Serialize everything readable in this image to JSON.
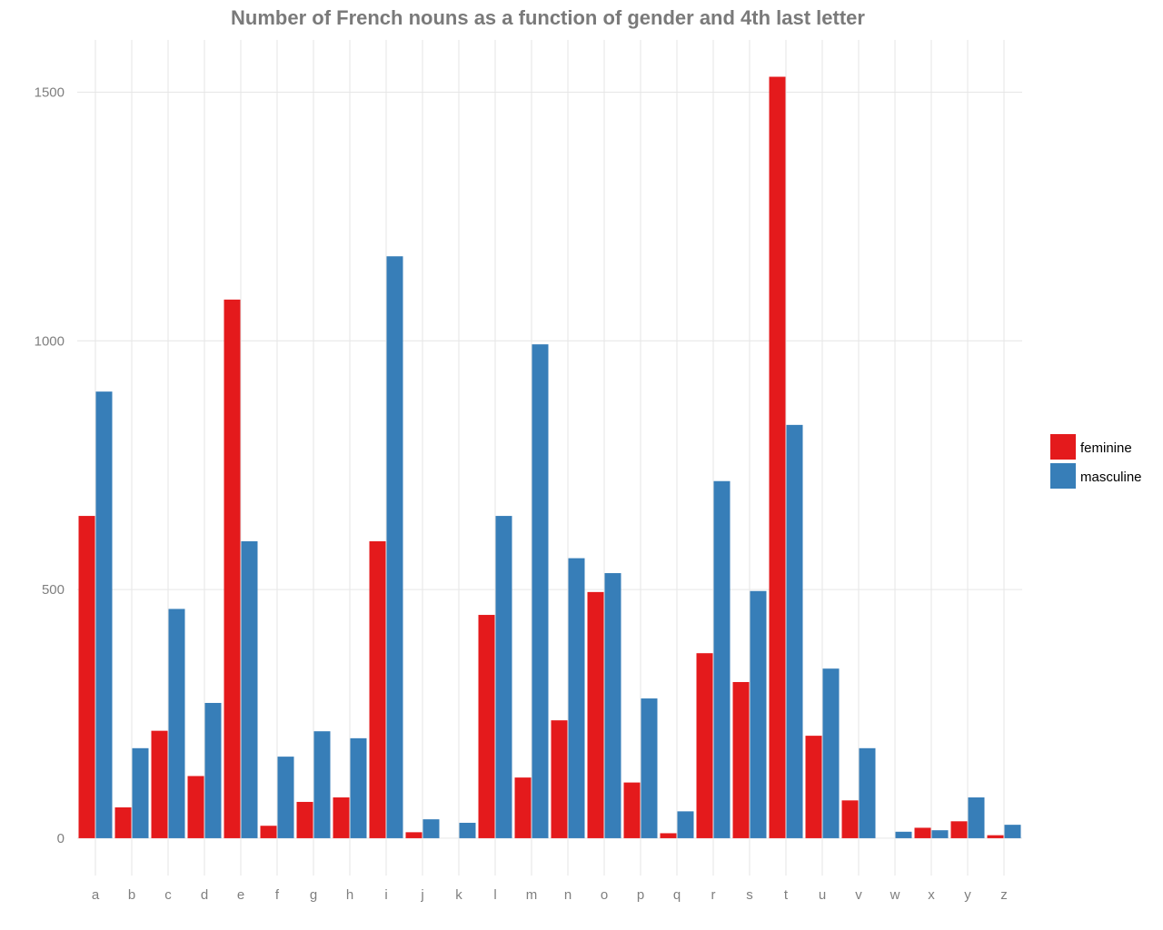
{
  "chart_data": {
    "type": "bar",
    "title": "Number of French nouns as a function of gender and 4th last letter",
    "xlabel": "",
    "ylabel": "",
    "ylim": [
      -75,
      1605
    ],
    "yticks": [
      0,
      500,
      1000,
      1500
    ],
    "grid": true,
    "legend_position": "right",
    "categories": [
      "a",
      "b",
      "c",
      "d",
      "e",
      "f",
      "g",
      "h",
      "i",
      "j",
      "k",
      "l",
      "m",
      "n",
      "o",
      "p",
      "q",
      "r",
      "s",
      "t",
      "u",
      "v",
      "w",
      "x",
      "y",
      "z"
    ],
    "series": [
      {
        "name": "feminine",
        "color": "#E41A1C",
        "values": [
          648,
          62,
          216,
          125,
          1083,
          25,
          73,
          82,
          597,
          12,
          0,
          449,
          122,
          237,
          495,
          112,
          10,
          372,
          314,
          1531,
          206,
          76,
          0,
          21,
          34,
          6
        ]
      },
      {
        "name": "masculine",
        "color": "#377EB8",
        "values": [
          898,
          181,
          461,
          272,
          597,
          164,
          215,
          201,
          1170,
          38,
          31,
          648,
          993,
          563,
          533,
          281,
          54,
          718,
          497,
          831,
          341,
          181,
          13,
          16,
          82,
          27
        ]
      }
    ]
  }
}
